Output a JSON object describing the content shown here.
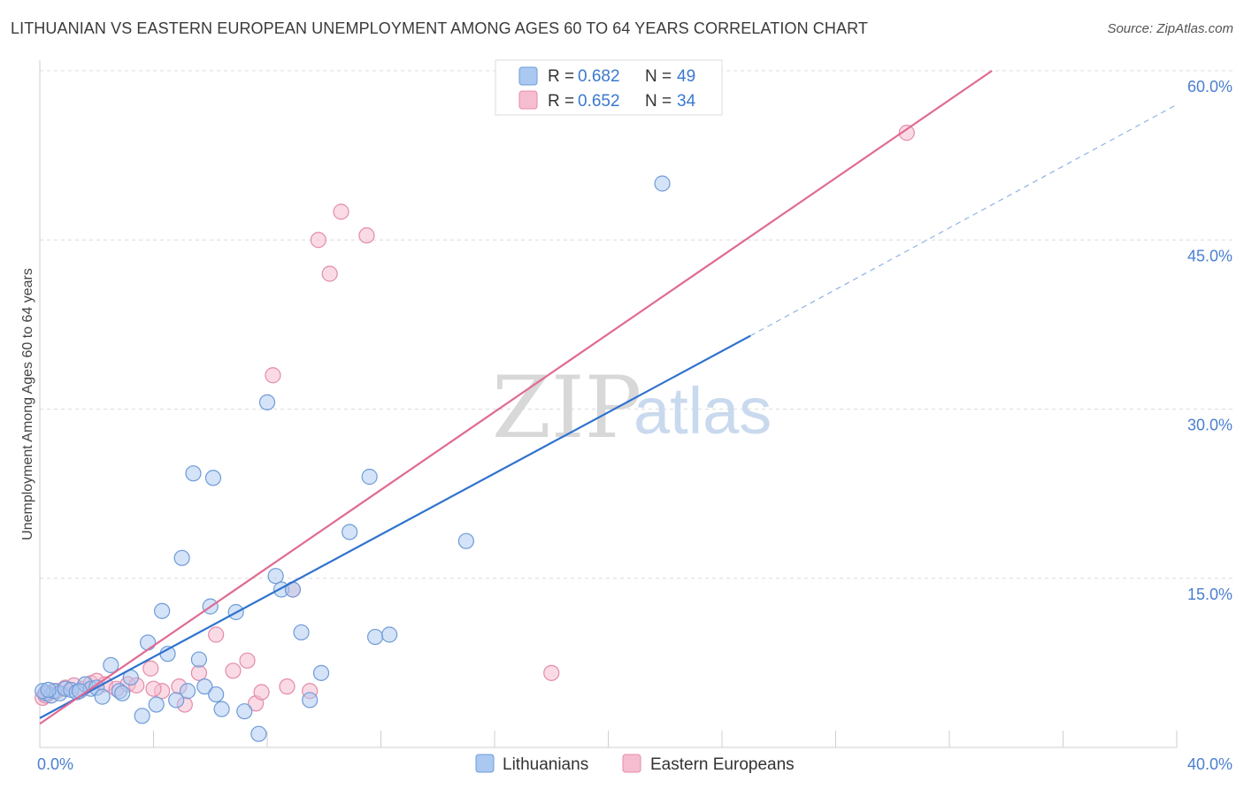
{
  "header": {
    "title": "LITHUANIAN VS EASTERN EUROPEAN UNEMPLOYMENT AMONG AGES 60 TO 64 YEARS CORRELATION CHART",
    "source": "Source: ZipAtlas.com"
  },
  "watermark": {
    "part1": "ZIP",
    "part2": "atlas"
  },
  "legend": {
    "r_label": "R =",
    "n_label": "N =",
    "rows": [
      {
        "r": "0.682",
        "n": "49"
      },
      {
        "r": "0.652",
        "n": "34"
      }
    ]
  },
  "colors": {
    "lithuanian_fill": "#aac8f0",
    "lithuanian_stroke": "#6f9bd8",
    "lithuanian_line": "#2f72cf",
    "eastern_fill": "#f6bdd0",
    "eastern_stroke": "#e48aa9",
    "eastern_line": "#e06a93"
  },
  "chart_data": {
    "type": "scatter",
    "title": "LITHUANIAN VS EASTERN EUROPEAN UNEMPLOYMENT AMONG AGES 60 TO 64 YEARS CORRELATION CHART",
    "xlabel": "",
    "ylabel": "Unemployment Among Ages 60 to 64 years",
    "xlim": [
      0,
      40
    ],
    "ylim": [
      0,
      60
    ],
    "x_tick_labels": [
      "0.0%",
      "40.0%"
    ],
    "y_ticks": [
      15,
      30,
      45,
      60
    ],
    "y_tick_labels": [
      "15.0%",
      "30.0%",
      "45.0%",
      "60.0%"
    ],
    "grid": true,
    "legend_position": "top-center",
    "series": [
      {
        "name": "Lithuanians",
        "r": 0.682,
        "n": 49,
        "trend": {
          "x1": 0,
          "y1": 2.6,
          "x2": 25,
          "y2": 36.5,
          "dashed_to_x": 40,
          "dashed_to_y": 57.0
        },
        "points": [
          [
            0.2,
            4.8
          ],
          [
            0.4,
            4.6
          ],
          [
            0.5,
            5.0
          ],
          [
            0.7,
            4.8
          ],
          [
            0.9,
            5.2
          ],
          [
            1.1,
            5.1
          ],
          [
            1.3,
            4.9
          ],
          [
            1.6,
            5.6
          ],
          [
            1.8,
            5.2
          ],
          [
            2.0,
            5.3
          ],
          [
            2.2,
            4.5
          ],
          [
            2.5,
            7.3
          ],
          [
            2.8,
            5.0
          ],
          [
            3.2,
            6.2
          ],
          [
            3.6,
            2.8
          ],
          [
            3.8,
            9.3
          ],
          [
            4.1,
            3.8
          ],
          [
            4.3,
            12.1
          ],
          [
            4.5,
            8.3
          ],
          [
            4.8,
            4.2
          ],
          [
            5.0,
            16.8
          ],
          [
            5.2,
            5.0
          ],
          [
            5.4,
            24.3
          ],
          [
            5.6,
            7.8
          ],
          [
            5.8,
            5.4
          ],
          [
            6.0,
            12.5
          ],
          [
            6.1,
            23.9
          ],
          [
            6.2,
            4.7
          ],
          [
            6.4,
            3.4
          ],
          [
            6.9,
            12.0
          ],
          [
            7.2,
            3.2
          ],
          [
            7.7,
            1.2
          ],
          [
            8.0,
            30.6
          ],
          [
            8.3,
            15.2
          ],
          [
            8.5,
            14.0
          ],
          [
            8.9,
            14.0
          ],
          [
            9.2,
            10.2
          ],
          [
            9.5,
            4.2
          ],
          [
            9.9,
            6.6
          ],
          [
            10.9,
            19.1
          ],
          [
            11.6,
            24.0
          ],
          [
            11.8,
            9.8
          ],
          [
            12.3,
            10.0
          ],
          [
            15.0,
            18.3
          ],
          [
            21.9,
            50.0
          ],
          [
            0.1,
            5.0
          ],
          [
            0.3,
            5.1
          ],
          [
            1.4,
            5.0
          ],
          [
            2.9,
            4.8
          ]
        ]
      },
      {
        "name": "Eastern Europeans",
        "r": 0.652,
        "n": 34,
        "trend": {
          "x1": 0,
          "y1": 2.1,
          "x2": 33.5,
          "y2": 60.0
        },
        "points": [
          [
            0.1,
            4.4
          ],
          [
            0.3,
            4.8
          ],
          [
            0.6,
            5.0
          ],
          [
            0.9,
            5.3
          ],
          [
            1.2,
            5.5
          ],
          [
            1.5,
            5.2
          ],
          [
            1.8,
            5.7
          ],
          [
            2.0,
            5.9
          ],
          [
            2.3,
            5.6
          ],
          [
            2.7,
            5.2
          ],
          [
            3.1,
            5.6
          ],
          [
            3.4,
            5.5
          ],
          [
            3.9,
            7.0
          ],
          [
            4.3,
            5.0
          ],
          [
            4.9,
            5.4
          ],
          [
            5.1,
            3.8
          ],
          [
            5.6,
            6.6
          ],
          [
            6.2,
            10.0
          ],
          [
            6.8,
            6.8
          ],
          [
            7.3,
            7.7
          ],
          [
            7.6,
            3.9
          ],
          [
            7.8,
            4.9
          ],
          [
            8.2,
            33.0
          ],
          [
            8.7,
            5.4
          ],
          [
            8.9,
            14.0
          ],
          [
            9.5,
            5.0
          ],
          [
            9.8,
            45.0
          ],
          [
            10.2,
            42.0
          ],
          [
            10.6,
            47.5
          ],
          [
            11.5,
            45.4
          ],
          [
            18.0,
            6.6
          ],
          [
            30.5,
            54.5
          ],
          [
            0.2,
            4.6
          ],
          [
            4.0,
            5.2
          ]
        ]
      }
    ]
  },
  "bottom_legend": {
    "items": [
      "Lithuanians",
      "Eastern Europeans"
    ]
  }
}
